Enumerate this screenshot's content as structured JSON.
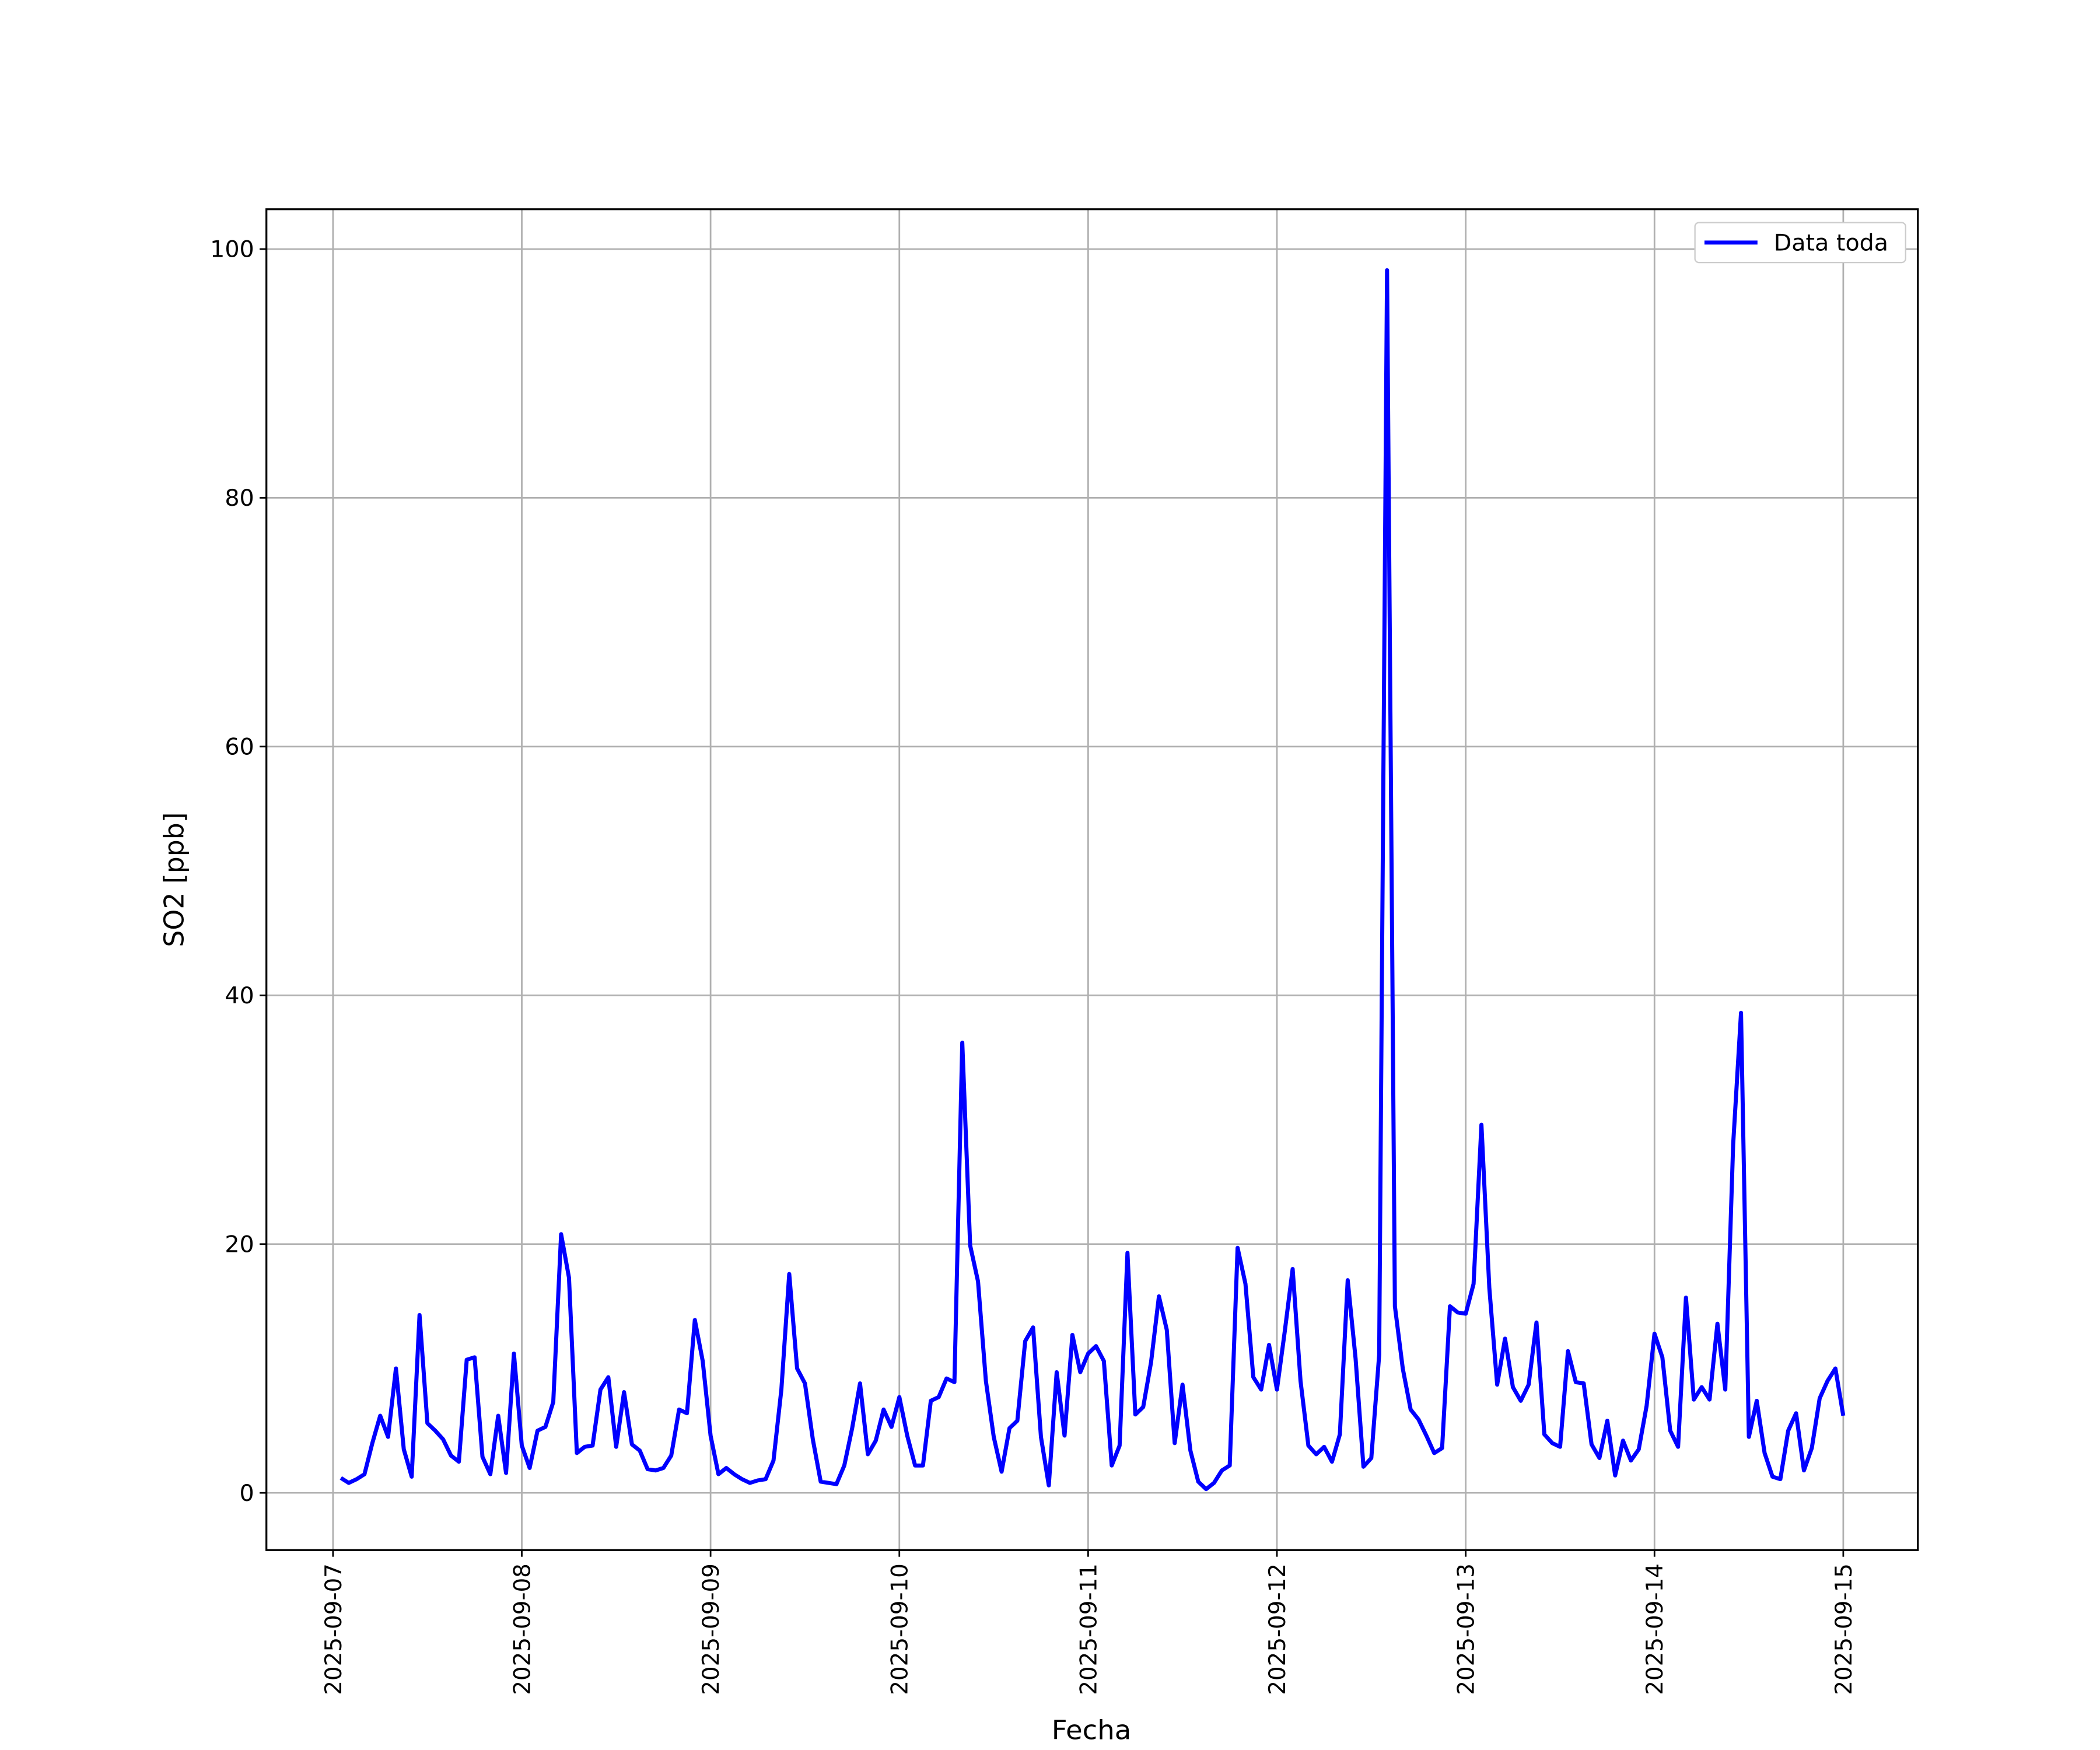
{
  "chart_data": {
    "type": "line",
    "x_label": "Fecha",
    "y_label": "SO2 [ppb]",
    "x": [
      "2025-09-07 01:00",
      "2025-09-07 02:00",
      "2025-09-07 03:00",
      "2025-09-07 04:00",
      "2025-09-07 05:00",
      "2025-09-07 06:00",
      "2025-09-07 07:00",
      "2025-09-07 08:00",
      "2025-09-07 09:00",
      "2025-09-07 10:00",
      "2025-09-07 11:00",
      "2025-09-07 12:00",
      "2025-09-07 13:00",
      "2025-09-07 14:00",
      "2025-09-07 15:00",
      "2025-09-07 16:00",
      "2025-09-07 17:00",
      "2025-09-07 18:00",
      "2025-09-07 19:00",
      "2025-09-07 20:00",
      "2025-09-07 21:00",
      "2025-09-07 22:00",
      "2025-09-07 23:00",
      "2025-09-08 00:00",
      "2025-09-08 01:00",
      "2025-09-08 02:00",
      "2025-09-08 03:00",
      "2025-09-08 04:00",
      "2025-09-08 05:00",
      "2025-09-08 06:00",
      "2025-09-08 07:00",
      "2025-09-08 08:00",
      "2025-09-08 09:00",
      "2025-09-08 10:00",
      "2025-09-08 11:00",
      "2025-09-08 12:00",
      "2025-09-08 13:00",
      "2025-09-08 14:00",
      "2025-09-08 15:00",
      "2025-09-08 16:00",
      "2025-09-08 17:00",
      "2025-09-08 18:00",
      "2025-09-08 19:00",
      "2025-09-08 20:00",
      "2025-09-08 21:00",
      "2025-09-08 22:00",
      "2025-09-08 23:00",
      "2025-09-09 00:00",
      "2025-09-09 01:00",
      "2025-09-09 02:00",
      "2025-09-09 03:00",
      "2025-09-09 04:00",
      "2025-09-09 05:00",
      "2025-09-09 06:00",
      "2025-09-09 07:00",
      "2025-09-09 08:00",
      "2025-09-09 09:00",
      "2025-09-09 10:00",
      "2025-09-09 11:00",
      "2025-09-09 12:00",
      "2025-09-09 13:00",
      "2025-09-09 14:00",
      "2025-09-09 15:00",
      "2025-09-09 16:00",
      "2025-09-09 17:00",
      "2025-09-09 18:00",
      "2025-09-09 19:00",
      "2025-09-09 20:00",
      "2025-09-09 21:00",
      "2025-09-09 22:00",
      "2025-09-09 23:00",
      "2025-09-10 00:00",
      "2025-09-10 01:00",
      "2025-09-10 02:00",
      "2025-09-10 03:00",
      "2025-09-10 04:00",
      "2025-09-10 05:00",
      "2025-09-10 06:00",
      "2025-09-10 07:00",
      "2025-09-10 08:00",
      "2025-09-10 09:00",
      "2025-09-10 10:00",
      "2025-09-10 11:00",
      "2025-09-10 12:00",
      "2025-09-10 13:00",
      "2025-09-10 14:00",
      "2025-09-10 15:00",
      "2025-09-10 16:00",
      "2025-09-10 17:00",
      "2025-09-10 18:00",
      "2025-09-10 19:00",
      "2025-09-10 20:00",
      "2025-09-10 21:00",
      "2025-09-10 22:00",
      "2025-09-10 23:00",
      "2025-09-11 00:00",
      "2025-09-11 01:00",
      "2025-09-11 02:00",
      "2025-09-11 03:00",
      "2025-09-11 04:00",
      "2025-09-11 05:00",
      "2025-09-11 06:00",
      "2025-09-11 07:00",
      "2025-09-11 08:00",
      "2025-09-11 09:00",
      "2025-09-11 10:00",
      "2025-09-11 11:00",
      "2025-09-11 12:00",
      "2025-09-11 13:00",
      "2025-09-11 14:00",
      "2025-09-11 15:00",
      "2025-09-11 16:00",
      "2025-09-11 17:00",
      "2025-09-11 18:00",
      "2025-09-11 19:00",
      "2025-09-11 20:00",
      "2025-09-11 21:00",
      "2025-09-11 22:00",
      "2025-09-11 23:00",
      "2025-09-12 00:00",
      "2025-09-12 01:00",
      "2025-09-12 02:00",
      "2025-09-12 03:00",
      "2025-09-12 04:00",
      "2025-09-12 05:00",
      "2025-09-12 06:00",
      "2025-09-12 07:00",
      "2025-09-12 08:00",
      "2025-09-12 09:00",
      "2025-09-12 10:00",
      "2025-09-12 11:00",
      "2025-09-12 12:00",
      "2025-09-12 13:00",
      "2025-09-12 14:00",
      "2025-09-12 15:00",
      "2025-09-12 16:00",
      "2025-09-12 17:00",
      "2025-09-12 18:00",
      "2025-09-12 19:00",
      "2025-09-12 20:00",
      "2025-09-12 21:00",
      "2025-09-12 22:00",
      "2025-09-12 23:00",
      "2025-09-13 00:00",
      "2025-09-13 01:00",
      "2025-09-13 02:00",
      "2025-09-13 03:00",
      "2025-09-13 04:00",
      "2025-09-13 05:00",
      "2025-09-13 06:00",
      "2025-09-13 07:00",
      "2025-09-13 08:00",
      "2025-09-13 09:00",
      "2025-09-13 10:00",
      "2025-09-13 11:00",
      "2025-09-13 12:00",
      "2025-09-13 13:00",
      "2025-09-13 14:00",
      "2025-09-13 15:00",
      "2025-09-13 16:00",
      "2025-09-13 17:00",
      "2025-09-13 18:00",
      "2025-09-13 19:00",
      "2025-09-13 20:00",
      "2025-09-13 21:00",
      "2025-09-13 22:00",
      "2025-09-13 23:00",
      "2025-09-14 00:00",
      "2025-09-14 01:00",
      "2025-09-14 02:00",
      "2025-09-14 03:00",
      "2025-09-14 04:00",
      "2025-09-14 05:00",
      "2025-09-14 06:00",
      "2025-09-14 07:00",
      "2025-09-14 08:00",
      "2025-09-14 09:00",
      "2025-09-14 10:00",
      "2025-09-14 11:00",
      "2025-09-14 12:00",
      "2025-09-14 13:00",
      "2025-09-14 14:00",
      "2025-09-14 15:00",
      "2025-09-14 16:00",
      "2025-09-14 17:00",
      "2025-09-14 18:00",
      "2025-09-14 19:00",
      "2025-09-14 20:00",
      "2025-09-14 21:00",
      "2025-09-14 22:00",
      "2025-09-14 23:00",
      "2025-09-15 00:00"
    ],
    "series": [
      {
        "name": "Data toda",
        "color": "#0000ff",
        "values": [
          1.2,
          0.8,
          1.1,
          1.5,
          4,
          6.2,
          4.5,
          10,
          3.5,
          1.3,
          14.3,
          5.6,
          5,
          4.3,
          3,
          2.5,
          10.7,
          10.9,
          2.9,
          1.5,
          6.2,
          1.6,
          11.2,
          3.8,
          2,
          5,
          5.3,
          7.3,
          20.8,
          17.3,
          3.2,
          3.7,
          3.8,
          8.3,
          9.3,
          3.7,
          8.1,
          3.9,
          3.4,
          1.9,
          1.8,
          2,
          3,
          6.7,
          6.4,
          13.9,
          10.6,
          4.6,
          1.5,
          2,
          1.5,
          1.1,
          0.8,
          1,
          1.1,
          2.6,
          8.3,
          17.6,
          10,
          8.8,
          4.3,
          0.9,
          0.8,
          0.7,
          2.2,
          5.2,
          8.8,
          3.1,
          4.2,
          6.7,
          5.3,
          7.7,
          4.6,
          2.2,
          2.2,
          7.4,
          7.7,
          9.2,
          8.9,
          36.2,
          19.9,
          17,
          9,
          4.5,
          1.7,
          5.2,
          5.8,
          12.2,
          13.3,
          4.5,
          0.6,
          9.7,
          4.6,
          12.7,
          9.7,
          11.2,
          11.8,
          10.6,
          2.2,
          3.8,
          19.3,
          6.3,
          6.9,
          10.5,
          15.8,
          13.1,
          4,
          8.7,
          3.4,
          0.9,
          0.3,
          0.8,
          1.8,
          2.2,
          19.7,
          16.8,
          9.3,
          8.3,
          11.9,
          8.3,
          13,
          18,
          9,
          3.8,
          3.1,
          3.7,
          2.5,
          4.7,
          17.1,
          10.8,
          2.1,
          2.8,
          11.1,
          98.3,
          15,
          10,
          6.7,
          5.9,
          4.6,
          3.2,
          3.6,
          15,
          14.5,
          14.4,
          16.8,
          29.6,
          16.5,
          8.7,
          12.4,
          8.5,
          7.4,
          8.7,
          13.7,
          4.7,
          4,
          3.7,
          11.4,
          8.9,
          8.8,
          3.9,
          2.8,
          5.8,
          1.4,
          4.2,
          2.6,
          3.5,
          7,
          12.8,
          10.9,
          5,
          3.7,
          15.7,
          7.5,
          8.5,
          7.5,
          13.6,
          8.3,
          28,
          38.6,
          4.5,
          7.4,
          3.2,
          1.3,
          1.1,
          5,
          6.4,
          1.8,
          3.6,
          7.6,
          9,
          10,
          6.2
        ]
      }
    ],
    "xlim": [
      "2025-09-06 15:32",
      "2025-09-15 09:29"
    ],
    "xticks": [
      "2025-09-07",
      "2025-09-08",
      "2025-09-09",
      "2025-09-10",
      "2025-09-11",
      "2025-09-12",
      "2025-09-13",
      "2025-09-14",
      "2025-09-15"
    ],
    "ylim": [
      -4.6,
      103.2
    ],
    "yticks": [
      0,
      20,
      40,
      60,
      80,
      100
    ],
    "grid": true,
    "legend": "upper right"
  }
}
